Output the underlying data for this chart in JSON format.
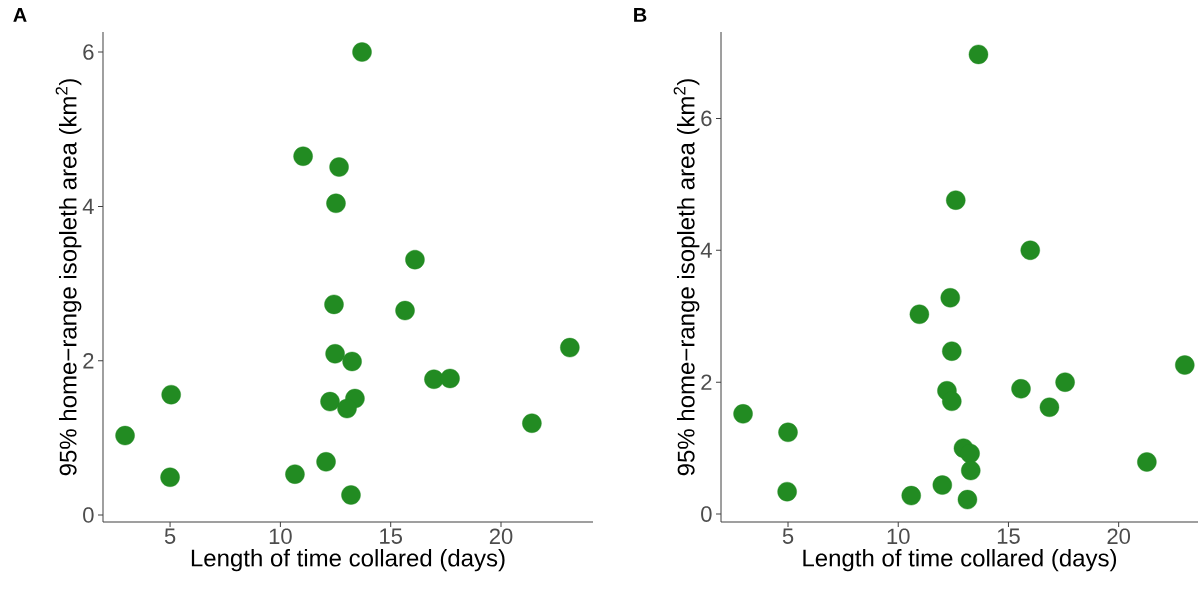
{
  "chart_data": [
    {
      "type": "scatter",
      "title": "A",
      "xlabel": "Length of time collared (days)",
      "ylabel": "95% home−range isopleth area (km$^{2}$)",
      "color": "#228b22",
      "marker": "circle",
      "x": [
        2.96,
        5.05,
        5.0,
        10.66,
        12.07,
        11.03,
        12.66,
        12.52,
        13.7,
        16.1,
        12.43,
        15.65,
        12.48,
        13.25,
        12.25,
        13.38,
        13.02,
        13.2,
        16.96,
        17.69,
        21.4,
        23.12
      ],
      "values": [
        1.03,
        1.56,
        0.49,
        0.53,
        0.69,
        4.65,
        4.51,
        4.04,
        6.0,
        3.31,
        2.73,
        2.65,
        2.09,
        1.99,
        1.47,
        1.51,
        1.38,
        0.26,
        1.76,
        1.77,
        1.19,
        2.17
      ],
      "xlim": [
        1.96,
        24.17
      ],
      "ylim": [
        -0.09,
        6.26
      ],
      "xticks": [
        5,
        10,
        15,
        20
      ],
      "yticks": [
        0,
        2,
        4,
        6
      ]
    },
    {
      "type": "scatter",
      "title": "B",
      "xlabel": "Length of time collared (days)",
      "ylabel": "95% home−range isopleth area (km$^{2}$)",
      "color": "#228b22",
      "marker": "circle",
      "x": [
        2.96,
        5.0,
        4.96,
        10.59,
        12.0,
        10.96,
        12.61,
        12.36,
        13.64,
        15.99,
        12.43,
        15.57,
        12.21,
        12.43,
        12.96,
        13.26,
        13.29,
        13.14,
        16.86,
        17.57,
        21.28,
        23.0
      ],
      "values": [
        1.52,
        1.24,
        0.34,
        0.28,
        0.44,
        3.03,
        4.76,
        3.28,
        6.97,
        4.0,
        2.47,
        1.9,
        1.87,
        1.71,
        1.0,
        0.92,
        0.66,
        0.22,
        1.62,
        2.0,
        0.79,
        2.26
      ],
      "xlim": [
        1.96,
        23.6
      ],
      "ylim": [
        -0.12,
        7.31
      ],
      "xticks": [
        5,
        10,
        15,
        20
      ],
      "yticks": [
        0,
        2,
        4,
        6
      ]
    }
  ]
}
